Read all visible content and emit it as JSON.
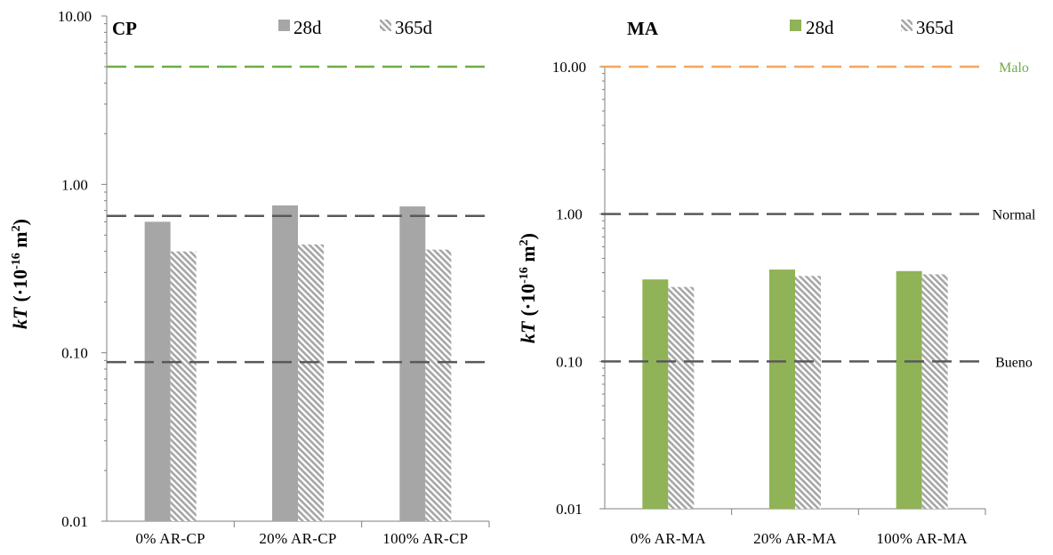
{
  "chart_data": [
    {
      "type": "bar",
      "title": "CP",
      "ylabel_base": "kT",
      "ylabel_unit": "(·10",
      "ylabel_exp": "-16",
      "ylabel_unit2": " m",
      "ylabel_exp2": "2",
      "ylabel_close": ")",
      "yscale": "log",
      "ylim": [
        0.01,
        10
      ],
      "yticks": [
        "0.01",
        "0.10",
        "1.00",
        "10.00"
      ],
      "categories": [
        "0% AR-CP",
        "20% AR-CP",
        "100% AR-CP"
      ],
      "series": [
        {
          "name": "28d",
          "values": [
            0.6,
            0.75,
            0.74
          ],
          "color": "#a6a6a6",
          "pattern": "solid"
        },
        {
          "name": "365d",
          "values": [
            0.4,
            0.44,
            0.41
          ],
          "color": "#a6a6a6",
          "pattern": "hatched"
        }
      ],
      "reference_lines": [
        {
          "value": 5.0,
          "color": "#70ad47",
          "label": ""
        },
        {
          "value": 0.65,
          "color": "#595959",
          "label": ""
        },
        {
          "value": 0.088,
          "color": "#595959",
          "label": ""
        }
      ],
      "legend_position": "top"
    },
    {
      "type": "bar",
      "title": "MA",
      "ylabel_base": "kT",
      "ylabel_unit": "(·10",
      "ylabel_exp": "-16",
      "ylabel_unit2": " m",
      "ylabel_exp2": "2",
      "ylabel_close": ")",
      "yscale": "log",
      "ylim": [
        0.01,
        10
      ],
      "yticks": [
        "0.01",
        "0.10",
        "1.00",
        "10.00"
      ],
      "categories": [
        "0% AR-MA",
        "20% AR-MA",
        "100% AR-MA"
      ],
      "series": [
        {
          "name": "28d",
          "values": [
            0.36,
            0.42,
            0.41
          ],
          "color": "#8fb356",
          "pattern": "solid"
        },
        {
          "name": "365d",
          "values": [
            0.32,
            0.38,
            0.39
          ],
          "color": "#a6a6a6",
          "pattern": "hatched"
        }
      ],
      "reference_lines": [
        {
          "value": 10.0,
          "color": "#f4a460",
          "label": "Malo",
          "label_color": "#70ad47"
        },
        {
          "value": 1.0,
          "color": "#595959",
          "label": "Normal",
          "label_color": "#000000"
        },
        {
          "value": 0.1,
          "color": "#595959",
          "label": "Bueno",
          "label_color": "#000000"
        }
      ],
      "legend_position": "top"
    }
  ]
}
